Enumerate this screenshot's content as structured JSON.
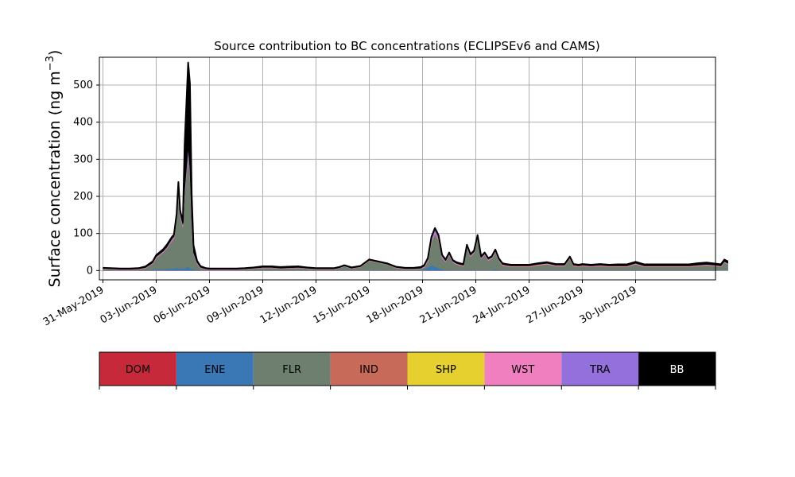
{
  "chart_data": {
    "type": "area",
    "title": "Source contribution to BC concentrations (ECLIPSEv6 and CAMS)",
    "xlabel": "",
    "ylabel_main": "Surface concentration (ng m",
    "ylabel_sup": "−3",
    "ylabel_close": ")",
    "ylim": [
      -25,
      575
    ],
    "xlim_days": [
      -0.2,
      34.5
    ],
    "grid": true,
    "yticks": [
      0,
      100,
      200,
      300,
      400,
      500
    ],
    "ytick_labels": [
      "0",
      "100",
      "200",
      "300",
      "400",
      "500"
    ],
    "xticks": [
      {
        "day": 0,
        "label": "31-May-2019"
      },
      {
        "day": 3,
        "label": "03-Jun-2019"
      },
      {
        "day": 6,
        "label": "06-Jun-2019"
      },
      {
        "day": 9,
        "label": "09-Jun-2019"
      },
      {
        "day": 12,
        "label": "12-Jun-2019"
      },
      {
        "day": 15,
        "label": "15-Jun-2019"
      },
      {
        "day": 18,
        "label": "18-Jun-2019"
      },
      {
        "day": 21,
        "label": "21-Jun-2019"
      },
      {
        "day": 24,
        "label": "24-Jun-2019"
      },
      {
        "day": 27,
        "label": "27-Jun-2019"
      },
      {
        "day": 30,
        "label": "30-Jun-2019"
      }
    ],
    "x": [
      0.0,
      1.0,
      1.5,
      2.0,
      2.4,
      2.8,
      3.0,
      3.4,
      3.6,
      3.9,
      4.0,
      4.15,
      4.25,
      4.35,
      4.5,
      4.6,
      4.8,
      4.9,
      5.0,
      5.1,
      5.3,
      5.5,
      5.8,
      6.0,
      6.5,
      7.0,
      7.5,
      8.0,
      8.5,
      9.0,
      9.5,
      10.0,
      10.5,
      11.0,
      11.5,
      12.0,
      12.5,
      13.0,
      13.3,
      13.6,
      14.0,
      14.5,
      15.0,
      16.0,
      16.5,
      17.0,
      17.5,
      17.9,
      18.1,
      18.3,
      18.5,
      18.7,
      18.9,
      19.0,
      19.1,
      19.3,
      19.5,
      19.7,
      19.9,
      20.1,
      20.3,
      20.5,
      20.7,
      20.9,
      21.1,
      21.3,
      21.5,
      21.7,
      21.9,
      22.1,
      22.3,
      22.5,
      22.7,
      23.0,
      23.5,
      24.0,
      24.5,
      25.0,
      25.5,
      26.0,
      26.3,
      26.5,
      26.8,
      27.0,
      27.5,
      28.0,
      28.5,
      29.0,
      29.3,
      29.5,
      30.0,
      30.5,
      31.0,
      31.5,
      32.0,
      32.5,
      33.0,
      33.5,
      34.0,
      34.5,
      34.8,
      35.0,
      35.2
    ],
    "series": [
      {
        "name": "DOM",
        "color": "#c62a3a",
        "values": [
          0.5,
          0.5,
          0.5,
          0.5,
          0.5,
          0.5,
          0.5,
          0.5,
          0.5,
          0.5,
          0.5,
          0.5,
          0.5,
          0.5,
          0.5,
          0.5,
          0.5,
          0.5,
          0.5,
          0.5,
          0.5,
          0.5,
          0.5,
          0.5,
          0.5,
          0.5,
          0.5,
          0.5,
          0.5,
          0.5,
          0.5,
          0.5,
          0.5,
          0.5,
          0.5,
          0.5,
          0.5,
          0.5,
          0.5,
          0.5,
          0.5,
          0.5,
          0.5,
          0.5,
          0.5,
          0.5,
          0.5,
          0.5,
          0.5,
          0.5,
          0.5,
          0.5,
          0.5,
          0.5,
          0.5,
          0.5,
          0.5,
          0.5,
          0.5,
          0.5,
          0.5,
          0.5,
          0.5,
          0.5,
          0.5,
          0.5,
          0.5,
          0.5,
          0.5,
          0.5,
          0.5,
          0.5,
          0.5,
          0.5,
          0.5,
          0.5,
          0.5,
          0.5,
          0.5,
          0.5,
          0.5,
          0.5,
          0.5,
          0.5,
          0.5,
          0.5,
          0.5,
          0.5,
          0.5,
          0.5,
          0.5,
          0.5,
          0.5,
          0.5,
          0.5,
          0.5,
          0.5,
          0.5,
          0.5,
          0.5,
          0.5,
          0.5,
          0.5
        ]
      },
      {
        "name": "ENE",
        "color": "#3a78b5",
        "values": [
          0.5,
          0.5,
          0.5,
          0.5,
          1,
          2,
          3,
          3,
          4,
          5,
          5,
          8,
          6,
          5,
          6,
          5,
          10,
          6,
          4,
          3,
          2,
          1,
          0.5,
          0.5,
          0.5,
          0.5,
          0.5,
          0.5,
          0.5,
          0.5,
          0.5,
          0.5,
          0.5,
          0.5,
          0.5,
          0.5,
          0.5,
          0.5,
          0.5,
          0.5,
          0.5,
          0.5,
          1,
          0.5,
          0.5,
          0.5,
          0.5,
          1,
          3,
          8,
          14,
          10,
          6,
          4,
          3,
          2,
          1,
          1,
          1,
          1,
          1,
          1,
          2,
          1,
          1,
          1,
          1,
          1,
          1,
          4,
          1,
          1,
          1,
          1,
          1,
          1,
          1,
          1,
          1,
          1,
          1,
          1,
          1,
          1,
          1,
          1,
          1,
          1,
          1,
          1,
          1,
          1,
          1,
          1,
          1,
          1,
          1,
          1,
          1,
          1,
          1,
          1,
          1
        ]
      },
      {
        "name": "FLR",
        "color": "#6e7f6f",
        "values": [
          3,
          1,
          1,
          2,
          5,
          15,
          30,
          45,
          55,
          75,
          80,
          130,
          200,
          140,
          110,
          200,
          300,
          250,
          120,
          40,
          15,
          5,
          2,
          1,
          1,
          1,
          1,
          2,
          4,
          6,
          6,
          4,
          5,
          6,
          4,
          2,
          2,
          2,
          5,
          10,
          4,
          8,
          25,
          15,
          6,
          3,
          3,
          3,
          5,
          15,
          60,
          90,
          75,
          55,
          30,
          20,
          40,
          20,
          15,
          12,
          10,
          60,
          35,
          45,
          85,
          30,
          40,
          25,
          30,
          45,
          25,
          12,
          10,
          8,
          8,
          8,
          12,
          15,
          10,
          10,
          30,
          10,
          8,
          10,
          8,
          10,
          8,
          8,
          8,
          8,
          15,
          8,
          8,
          8,
          8,
          8,
          8,
          10,
          12,
          10,
          8,
          20,
          15
        ]
      },
      {
        "name": "IND",
        "color": "#c86a5a",
        "values": [
          0.3,
          0.3,
          0.3,
          0.3,
          0.5,
          1,
          1,
          1,
          1,
          1,
          1,
          2,
          2,
          2,
          2,
          2,
          3,
          3,
          2,
          1,
          1,
          0.5,
          0.3,
          0.3,
          0.3,
          0.3,
          0.3,
          0.3,
          0.3,
          0.3,
          0.3,
          0.3,
          0.3,
          0.3,
          0.3,
          0.3,
          0.3,
          0.3,
          0.3,
          0.3,
          0.3,
          0.3,
          0.3,
          0.3,
          0.3,
          0.3,
          0.3,
          0.3,
          0.5,
          1,
          1,
          1,
          1,
          1,
          1,
          1,
          1,
          1,
          1,
          1,
          1,
          1,
          1,
          1,
          1,
          1,
          1,
          1,
          1,
          1,
          1,
          1,
          1,
          1,
          1,
          1,
          1,
          1,
          1,
          1,
          1,
          1,
          1,
          1,
          1,
          1,
          1,
          1,
          1,
          1,
          1,
          1,
          1,
          1,
          1,
          1,
          1,
          1,
          1,
          1,
          1,
          1,
          1
        ]
      },
      {
        "name": "SHP",
        "color": "#e6d030",
        "values": [
          0.2,
          0.2,
          0.2,
          0.2,
          0.2,
          0.2,
          0.2,
          0.2,
          0.2,
          0.2,
          0.2,
          0.2,
          0.2,
          0.2,
          0.2,
          0.2,
          0.2,
          0.2,
          0.2,
          0.2,
          0.2,
          0.2,
          0.2,
          0.2,
          0.2,
          0.2,
          0.2,
          0.2,
          0.2,
          0.2,
          0.2,
          0.2,
          0.2,
          0.2,
          0.2,
          0.2,
          0.2,
          0.2,
          0.2,
          0.2,
          0.2,
          0.2,
          0.2,
          0.2,
          0.2,
          0.2,
          0.2,
          0.2,
          0.2,
          0.2,
          0.2,
          0.2,
          0.2,
          0.2,
          0.2,
          0.2,
          0.2,
          0.2,
          0.2,
          0.2,
          0.2,
          0.2,
          0.2,
          0.2,
          0.2,
          0.2,
          0.2,
          0.2,
          0.2,
          0.2,
          0.2,
          0.2,
          0.2,
          0.2,
          0.2,
          0.2,
          0.2,
          0.2,
          0.2,
          0.2,
          0.2,
          0.2,
          0.2,
          0.2,
          0.2,
          0.2,
          0.2,
          0.2,
          0.2,
          0.2,
          0.2,
          0.2,
          0.2,
          0.2,
          0.2,
          0.2,
          0.2,
          0.2,
          0.2,
          0.2,
          0.2,
          0.2,
          0.2
        ]
      },
      {
        "name": "WST",
        "color": "#f07fbf",
        "values": [
          0.5,
          0.5,
          0.5,
          0.5,
          0.5,
          1,
          1,
          1,
          1,
          2,
          2,
          2,
          2,
          2,
          2,
          2,
          3,
          3,
          2,
          1,
          1,
          0.5,
          0.5,
          0.5,
          0.5,
          0.5,
          0.5,
          0.5,
          0.5,
          0.5,
          0.5,
          0.5,
          0.5,
          0.5,
          0.5,
          0.5,
          0.5,
          0.5,
          0.5,
          0.5,
          0.5,
          0.5,
          0.5,
          0.5,
          0.5,
          0.5,
          0.5,
          0.5,
          1,
          2,
          3,
          3,
          3,
          2,
          2,
          1,
          1,
          1,
          1,
          1,
          1,
          1,
          1,
          1,
          1,
          1,
          1,
          1,
          1,
          1,
          1,
          1,
          1,
          1,
          1,
          1,
          1,
          1,
          1,
          1,
          1,
          1,
          1,
          1,
          1,
          1,
          1,
          1,
          1,
          1,
          1,
          1,
          1,
          1,
          1,
          1,
          1,
          1,
          1,
          1,
          1,
          1,
          1
        ]
      },
      {
        "name": "TRA",
        "color": "#9370db",
        "values": [
          0.5,
          0.5,
          0.5,
          0.5,
          0.5,
          1,
          2,
          2,
          2,
          3,
          3,
          5,
          8,
          5,
          4,
          8,
          14,
          12,
          6,
          3,
          2,
          1,
          0.5,
          0.5,
          0.5,
          0.5,
          0.5,
          0.5,
          0.5,
          0.5,
          0.5,
          0.5,
          0.5,
          0.5,
          0.5,
          0.5,
          0.5,
          0.5,
          0.5,
          0.5,
          0.5,
          0.5,
          0.5,
          0.5,
          0.5,
          0.5,
          0.5,
          1,
          2,
          4,
          8,
          6,
          6,
          4,
          3,
          2,
          2,
          2,
          1,
          1,
          1,
          3,
          2,
          2,
          4,
          2,
          2,
          2,
          2,
          2,
          1,
          1,
          1,
          1,
          1,
          1,
          1,
          1,
          1,
          1,
          1,
          1,
          1,
          1,
          1,
          1,
          1,
          1,
          1,
          1,
          1,
          1,
          1,
          1,
          1,
          1,
          1,
          1,
          1,
          1,
          1,
          1,
          1
        ]
      },
      {
        "name": "BB",
        "color": "#000000",
        "values": [
          2,
          2,
          2,
          2,
          3,
          4,
          4,
          5,
          6,
          5,
          5,
          5,
          20,
          8,
          6,
          120,
          230,
          230,
          70,
          20,
          5,
          3,
          2,
          2,
          2,
          2,
          2,
          2,
          2,
          3,
          3,
          3,
          3,
          3,
          2,
          2,
          2,
          2,
          2,
          2,
          2,
          2,
          2,
          2,
          2,
          2,
          2,
          3,
          3,
          3,
          4,
          4,
          4,
          3,
          3,
          3,
          3,
          3,
          3,
          3,
          3,
          3,
          3,
          3,
          3,
          3,
          3,
          3,
          3,
          3,
          3,
          3,
          3,
          3,
          3,
          3,
          3,
          3,
          3,
          3,
          3,
          3,
          3,
          3,
          3,
          3,
          3,
          4,
          4,
          4,
          4,
          4,
          4,
          4,
          4,
          4,
          4,
          5,
          5,
          4,
          4,
          5,
          5
        ]
      }
    ]
  }
}
